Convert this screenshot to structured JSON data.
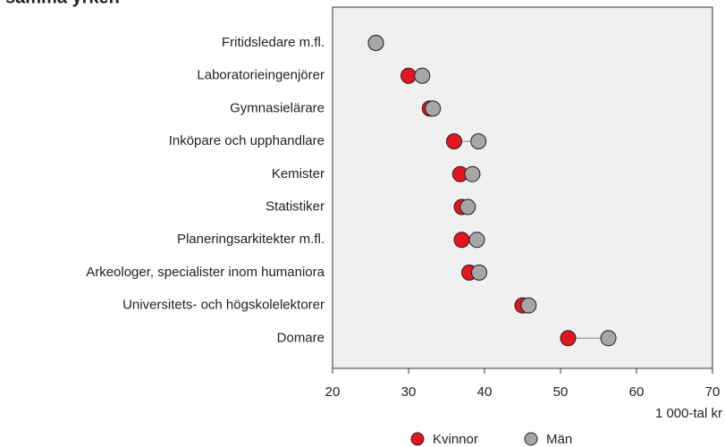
{
  "chart_data": {
    "type": "dumbbell",
    "title": "samma yrken",
    "x_label": "1 000-tal kr",
    "categories": [
      "Fritidsledare m.fl.",
      "Laboratorieingenjörer",
      "Gymnasielärare",
      "Inköpare och upphandlare",
      "Kemister",
      "Statistiker",
      "Planeringsarkitekter m.fl.",
      "Arkeologer, specialister inom humaniora",
      "Universitets- och högskolelektorer",
      "Domare"
    ],
    "series": [
      {
        "name": "Kvinnor",
        "color": "#e3161f",
        "values": [
          25.7,
          30,
          32.8,
          36,
          36.8,
          37,
          37,
          38,
          45,
          51
        ]
      },
      {
        "name": "Män",
        "color": "#a6a6a6",
        "values": [
          25.7,
          31.8,
          33.2,
          39.2,
          38.4,
          37.8,
          39,
          39.3,
          45.8,
          56.3
        ]
      }
    ],
    "xlim": [
      20,
      70
    ],
    "xticks": [
      20,
      30,
      40,
      50,
      60,
      70
    ]
  }
}
